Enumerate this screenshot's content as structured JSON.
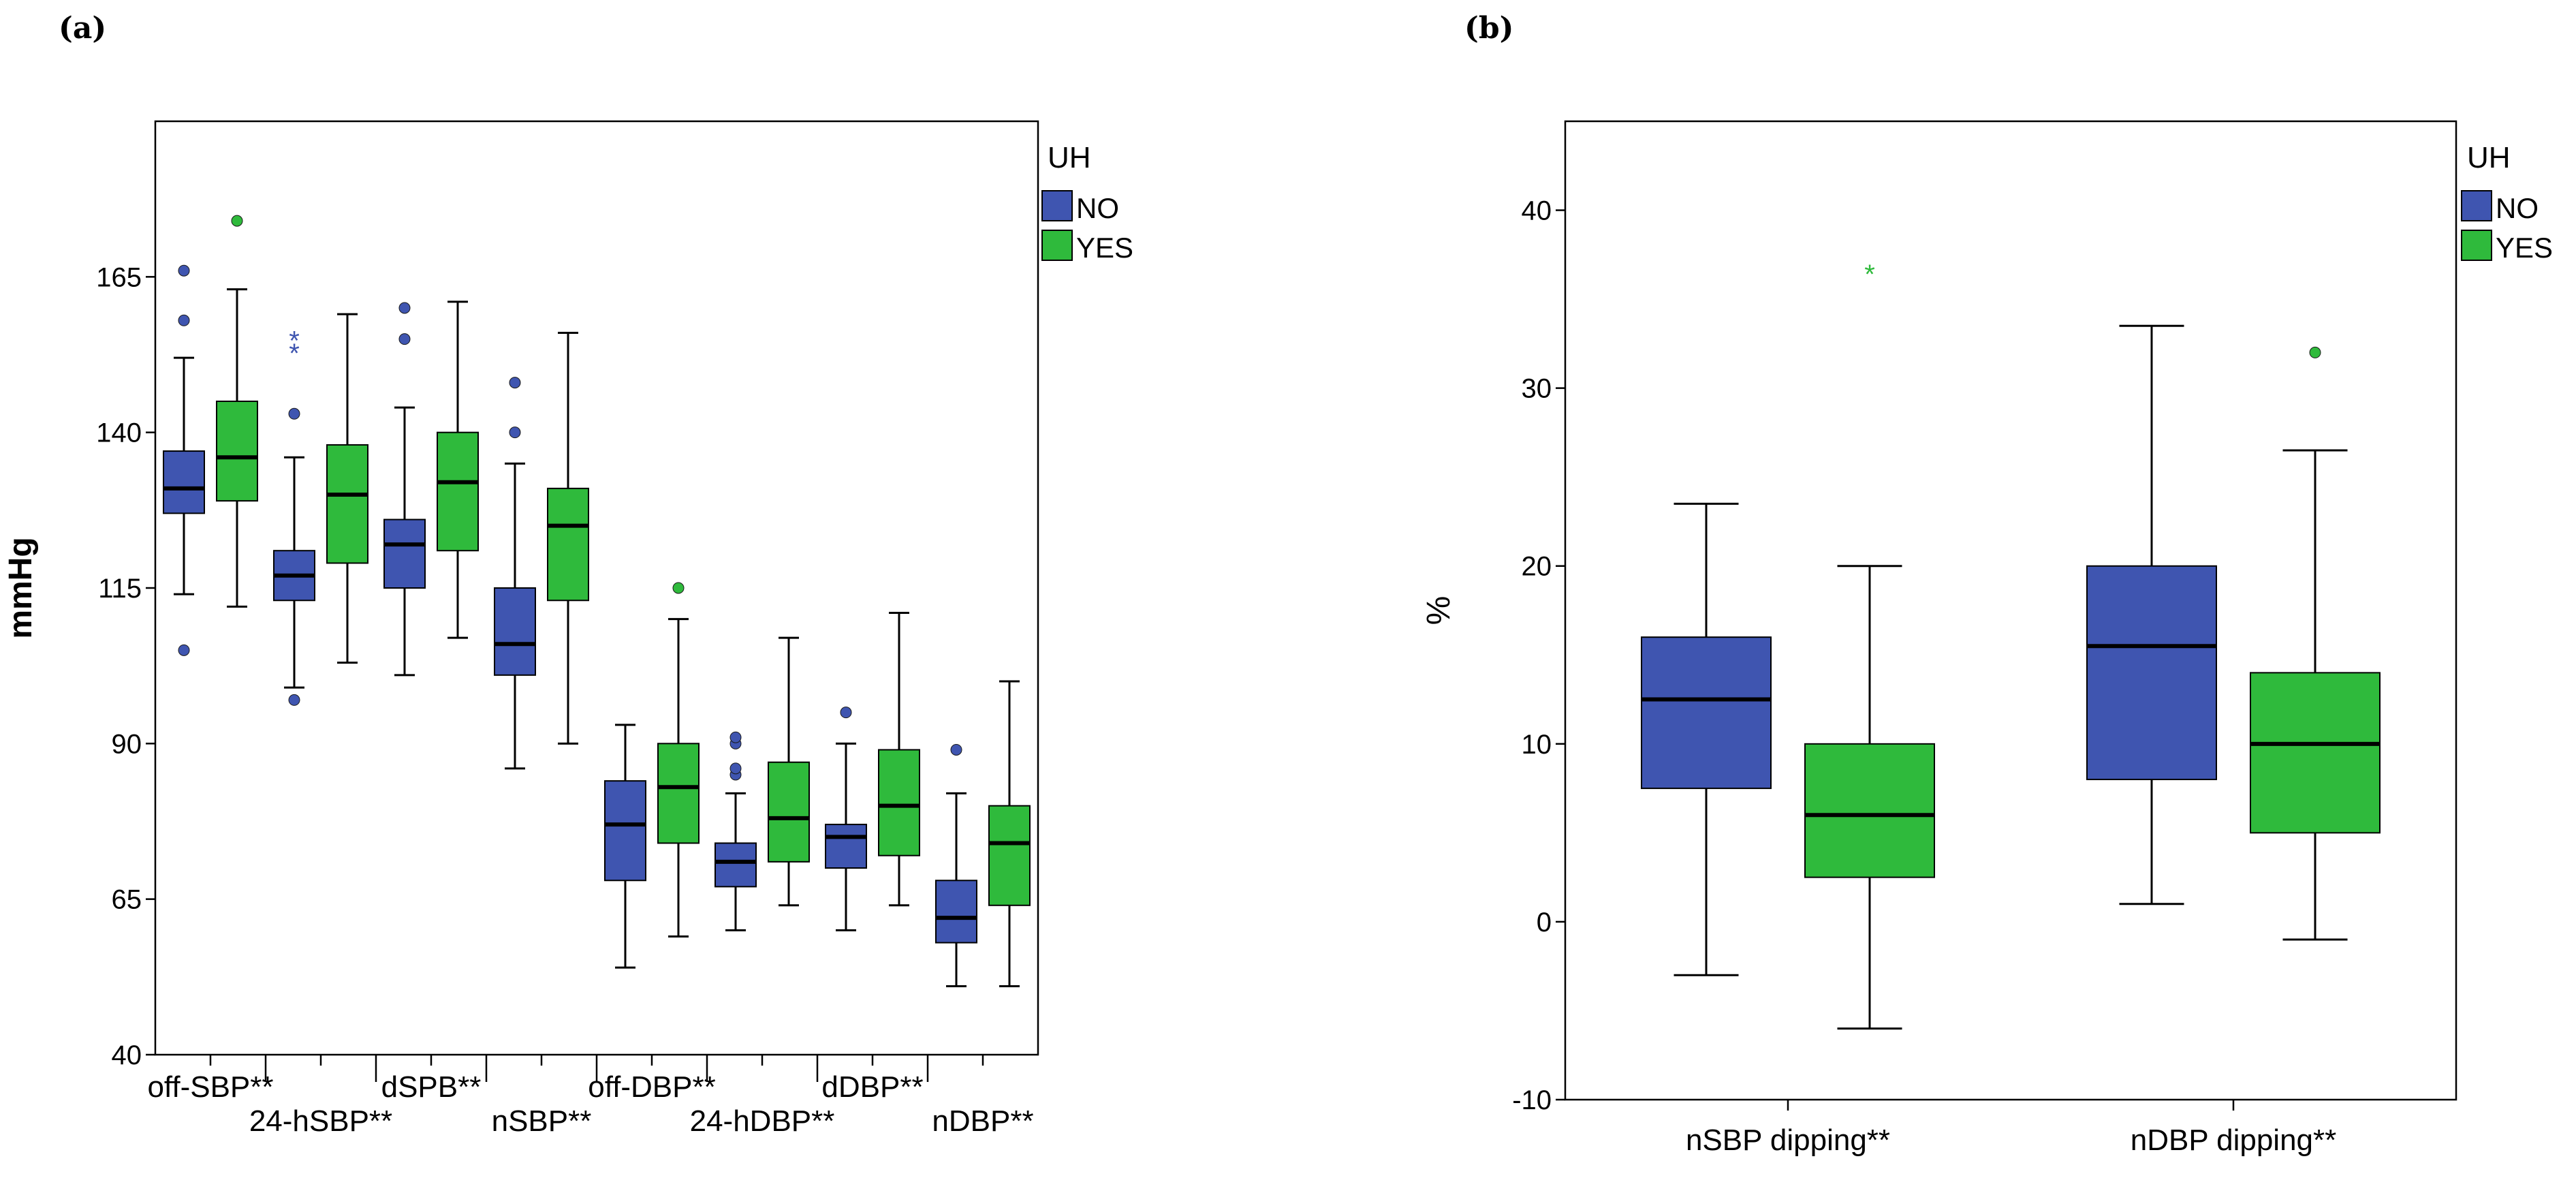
{
  "chart_data": [
    {
      "type": "box",
      "panel_label": "(a)",
      "ylabel": "mmHg",
      "ylim": [
        40,
        190
      ],
      "yticks": [
        40,
        65,
        90,
        115,
        140,
        165
      ],
      "legend": {
        "title": "UH",
        "placement": "top-right-outside",
        "entries": [
          "NO",
          "YES"
        ]
      },
      "colors": {
        "NO": "#3f55b0",
        "YES": "#2fba3c"
      },
      "categories": [
        "off-SBP**",
        "24-hSBP**",
        "dSPB**",
        "nSBP**",
        "off-DBP**",
        "24-hDBP**",
        "dDBP**",
        "nDBP**"
      ],
      "series": [
        {
          "name": "NO",
          "boxes": [
            {
              "min": 114,
              "q1": 127,
              "median": 131,
              "q3": 137,
              "max": 152,
              "outliers": [
                105,
                158,
                166
              ],
              "extremes": []
            },
            {
              "min": 99,
              "q1": 113,
              "median": 117,
              "q3": 121,
              "max": 136,
              "outliers": [
                97,
                143
              ],
              "extremes": [
                153,
                155
              ]
            },
            {
              "min": 101,
              "q1": 115,
              "median": 122,
              "q3": 126,
              "max": 144,
              "outliers": [
                155,
                160
              ],
              "extremes": []
            },
            {
              "min": 86,
              "q1": 101,
              "median": 106,
              "q3": 115,
              "max": 135,
              "outliers": [
                140,
                148
              ],
              "extremes": []
            },
            {
              "min": 54,
              "q1": 68,
              "median": 77,
              "q3": 84,
              "max": 93,
              "outliers": [],
              "extremes": []
            },
            {
              "min": 60,
              "q1": 67,
              "median": 71,
              "q3": 74,
              "max": 82,
              "outliers": [
                85,
                86,
                90,
                91
              ],
              "extremes": []
            },
            {
              "min": 60,
              "q1": 70,
              "median": 75,
              "q3": 77,
              "max": 90,
              "outliers": [
                95
              ],
              "extremes": []
            },
            {
              "min": 51,
              "q1": 58,
              "median": 62,
              "q3": 68,
              "max": 82,
              "outliers": [
                89
              ],
              "extremes": []
            }
          ]
        },
        {
          "name": "YES",
          "boxes": [
            {
              "min": 112,
              "q1": 129,
              "median": 136,
              "q3": 145,
              "max": 163,
              "outliers": [
                174
              ],
              "extremes": []
            },
            {
              "min": 103,
              "q1": 119,
              "median": 130,
              "q3": 138,
              "max": 159,
              "outliers": [],
              "extremes": []
            },
            {
              "min": 107,
              "q1": 121,
              "median": 132,
              "q3": 140,
              "max": 161,
              "outliers": [],
              "extremes": []
            },
            {
              "min": 90,
              "q1": 113,
              "median": 125,
              "q3": 131,
              "max": 156,
              "outliers": [],
              "extremes": []
            },
            {
              "min": 59,
              "q1": 74,
              "median": 83,
              "q3": 90,
              "max": 110,
              "outliers": [
                115
              ],
              "extremes": []
            },
            {
              "min": 64,
              "q1": 71,
              "median": 78,
              "q3": 87,
              "max": 107,
              "outliers": [],
              "extremes": []
            },
            {
              "min": 64,
              "q1": 72,
              "median": 80,
              "q3": 89,
              "max": 111,
              "outliers": [],
              "extremes": []
            },
            {
              "min": 51,
              "q1": 64,
              "median": 74,
              "q3": 80,
              "max": 100,
              "outliers": [],
              "extremes": []
            }
          ]
        }
      ]
    },
    {
      "type": "box",
      "panel_label": "(b)",
      "ylabel": "%",
      "ylim": [
        -10,
        45
      ],
      "yticks": [
        -10,
        0,
        10,
        20,
        30,
        40
      ],
      "legend": {
        "title": "UH",
        "placement": "top-right-outside",
        "entries": [
          "NO",
          "YES"
        ]
      },
      "colors": {
        "NO": "#3f55b0",
        "YES": "#2fba3c"
      },
      "categories": [
        "nSBP dipping**",
        "nDBP dipping**"
      ],
      "series": [
        {
          "name": "NO",
          "boxes": [
            {
              "min": -3,
              "q1": 7.5,
              "median": 12.5,
              "q3": 16,
              "max": 23.5,
              "outliers": [],
              "extremes": []
            },
            {
              "min": 1,
              "q1": 8,
              "median": 15.5,
              "q3": 20,
              "max": 33.5,
              "outliers": [],
              "extremes": []
            }
          ]
        },
        {
          "name": "YES",
          "boxes": [
            {
              "min": -6,
              "q1": 2.5,
              "median": 6,
              "q3": 10,
              "max": 20,
              "outliers": [],
              "extremes": [
                36.5
              ]
            },
            {
              "min": -1,
              "q1": 5,
              "median": 10,
              "q3": 14,
              "max": 26.5,
              "outliers": [
                32
              ],
              "extremes": []
            }
          ]
        }
      ]
    }
  ]
}
